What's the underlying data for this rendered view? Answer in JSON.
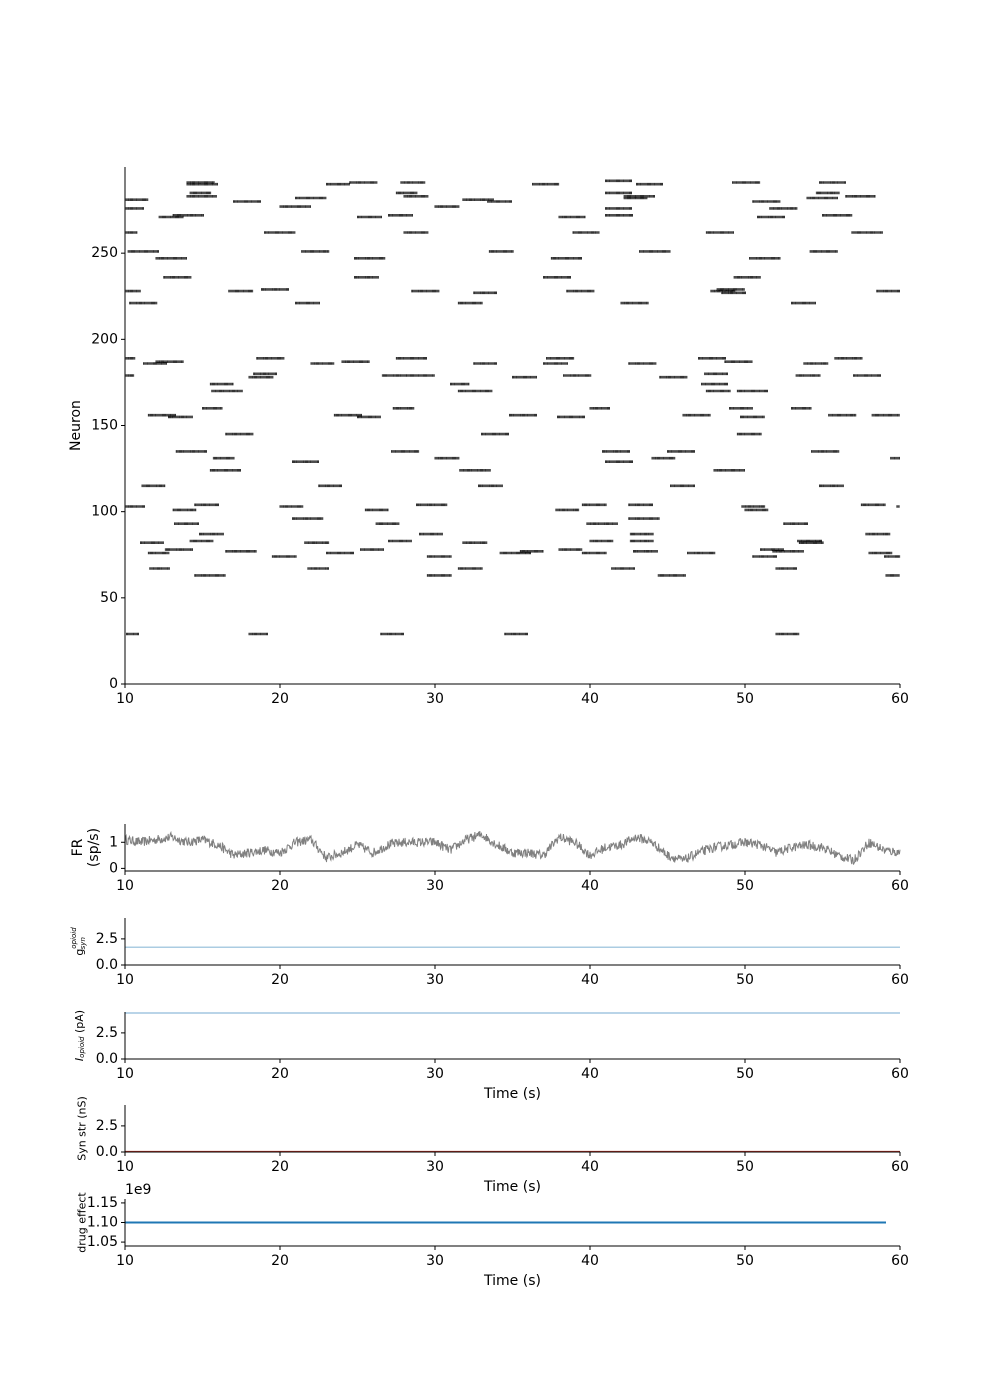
{
  "chart_data": [
    {
      "id": "raster",
      "type": "scatter",
      "marker": "short vertical tick",
      "ylabel": "Neuron",
      "xlim": [
        10,
        60
      ],
      "ylim": [
        0,
        300
      ],
      "xticks": [
        10,
        20,
        30,
        40,
        50,
        60
      ],
      "yticks": [
        0,
        50,
        100,
        150,
        200,
        250
      ],
      "color": "#000000",
      "bursts": [
        [
          10.0,
          281,
          1.5
        ],
        [
          10.0,
          276,
          1.2
        ],
        [
          10.0,
          262,
          0.8
        ],
        [
          10.2,
          251,
          2.0
        ],
        [
          10.0,
          228,
          1.0
        ],
        [
          10.3,
          221,
          1.8
        ],
        [
          10.0,
          189,
          0.7
        ],
        [
          10.0,
          179,
          0.6
        ],
        [
          10.0,
          103,
          1.3
        ],
        [
          10.1,
          29,
          0.8
        ],
        [
          11.2,
          186,
          1.5
        ],
        [
          11.5,
          156,
          1.8
        ],
        [
          11.0,
          82,
          1.5
        ],
        [
          11.5,
          76,
          1.4
        ],
        [
          11.6,
          67,
          1.3
        ],
        [
          11.1,
          115,
          1.5
        ],
        [
          12.0,
          187,
          1.8
        ],
        [
          12.2,
          271,
          1.6
        ],
        [
          12.0,
          247,
          2.0
        ],
        [
          12.5,
          236,
          1.8
        ],
        [
          12.8,
          155,
          1.6
        ],
        [
          12.6,
          78,
          1.8
        ],
        [
          13.1,
          272,
          2.0
        ],
        [
          13.3,
          135,
          2.0
        ],
        [
          13.1,
          101,
          1.5
        ],
        [
          13.2,
          93,
          1.6
        ],
        [
          14.0,
          291,
          1.8
        ],
        [
          14.0,
          290,
          2.0
        ],
        [
          14.2,
          285,
          1.4
        ],
        [
          14.0,
          283,
          1.9
        ],
        [
          14.5,
          104,
          1.6
        ],
        [
          14.8,
          87,
          1.6
        ],
        [
          14.2,
          83,
          1.5
        ],
        [
          14.5,
          63,
          2.0
        ],
        [
          15.0,
          160,
          1.3
        ],
        [
          15.5,
          174,
          1.5
        ],
        [
          15.6,
          170,
          2.0
        ],
        [
          15.7,
          131,
          1.4
        ],
        [
          15.5,
          124,
          2.0
        ],
        [
          16.5,
          145,
          1.8
        ],
        [
          16.7,
          228,
          1.6
        ],
        [
          16.5,
          77,
          2.0
        ],
        [
          17.0,
          280,
          1.8
        ],
        [
          18.0,
          178,
          1.6
        ],
        [
          18.0,
          29,
          1.2
        ],
        [
          18.5,
          189,
          1.8
        ],
        [
          18.3,
          180,
          1.5
        ],
        [
          18.8,
          229,
          1.8
        ],
        [
          19.0,
          262,
          2.0
        ],
        [
          19.5,
          74,
          1.6
        ],
        [
          20.0,
          277,
          2.0
        ],
        [
          20.0,
          103,
          1.5
        ],
        [
          20.8,
          96,
          2.0
        ],
        [
          20.8,
          129,
          1.7
        ],
        [
          21.0,
          221,
          1.6
        ],
        [
          21.0,
          282,
          2.0
        ],
        [
          21.4,
          251,
          1.8
        ],
        [
          21.6,
          82,
          1.6
        ],
        [
          21.8,
          67,
          1.4
        ],
        [
          22.0,
          186,
          1.5
        ],
        [
          22.5,
          115,
          1.5
        ],
        [
          23.0,
          290,
          1.5
        ],
        [
          23.0,
          76,
          1.8
        ],
        [
          23.5,
          156,
          1.8
        ],
        [
          24.0,
          187,
          1.8
        ],
        [
          24.5,
          291,
          1.8
        ],
        [
          24.8,
          247,
          2.0
        ],
        [
          24.8,
          236,
          1.6
        ],
        [
          25.0,
          155,
          1.5
        ],
        [
          25.0,
          271,
          1.6
        ],
        [
          25.2,
          78,
          1.5
        ],
        [
          25.5,
          101,
          1.5
        ],
        [
          26.2,
          93,
          1.5
        ],
        [
          26.5,
          29,
          1.5
        ],
        [
          26.6,
          179,
          1.6
        ],
        [
          27.0,
          272,
          1.6
        ],
        [
          27.0,
          83,
          1.5
        ],
        [
          27.2,
          135,
          1.8
        ],
        [
          27.3,
          160,
          1.4
        ],
        [
          27.5,
          189,
          2.0
        ],
        [
          27.8,
          291,
          1.6
        ],
        [
          27.5,
          285,
          1.4
        ],
        [
          28.0,
          283,
          1.6
        ],
        [
          28.0,
          262,
          1.6
        ],
        [
          28.2,
          179,
          1.8
        ],
        [
          28.5,
          228,
          1.8
        ],
        [
          28.8,
          104,
          2.0
        ],
        [
          29.0,
          87,
          1.5
        ],
        [
          29.5,
          74,
          1.6
        ],
        [
          29.5,
          63,
          1.6
        ],
        [
          30.0,
          131,
          1.6
        ],
        [
          30.0,
          277,
          1.6
        ],
        [
          31.0,
          174,
          1.2
        ],
        [
          31.5,
          170,
          2.2
        ],
        [
          31.6,
          124,
          2.0
        ],
        [
          31.5,
          221,
          1.6
        ],
        [
          31.5,
          67,
          1.6
        ],
        [
          31.8,
          281,
          2.0
        ],
        [
          31.8,
          82,
          1.6
        ],
        [
          32.5,
          227,
          1.5
        ],
        [
          32.5,
          186,
          1.5
        ],
        [
          32.8,
          115,
          1.6
        ],
        [
          33.0,
          145,
          1.8
        ],
        [
          33.4,
          280,
          1.6
        ],
        [
          33.5,
          251,
          1.6
        ],
        [
          34.5,
          29,
          1.5
        ],
        [
          34.2,
          76,
          2.0
        ],
        [
          34.8,
          156,
          1.8
        ],
        [
          35.0,
          178,
          1.6
        ],
        [
          35.5,
          77,
          1.5
        ],
        [
          36.3,
          290,
          1.7
        ],
        [
          37.0,
          236,
          1.8
        ],
        [
          37.2,
          189,
          1.8
        ],
        [
          37.0,
          186,
          1.6
        ],
        [
          37.5,
          247,
          2.0
        ],
        [
          37.8,
          101,
          1.5
        ],
        [
          37.9,
          155,
          1.8
        ],
        [
          38.0,
          271,
          1.7
        ],
        [
          38.0,
          78,
          1.5
        ],
        [
          38.3,
          179,
          1.8
        ],
        [
          38.5,
          228,
          1.8
        ],
        [
          38.9,
          262,
          1.7
        ],
        [
          39.5,
          76,
          1.6
        ],
        [
          39.5,
          104,
          1.6
        ],
        [
          39.8,
          93,
          2.0
        ],
        [
          40.0,
          160,
          1.3
        ],
        [
          40.0,
          83,
          1.5
        ],
        [
          40.8,
          135,
          1.8
        ],
        [
          41.0,
          129,
          1.8
        ],
        [
          41.0,
          292,
          1.7
        ],
        [
          41.0,
          285,
          1.7
        ],
        [
          41.0,
          276,
          1.7
        ],
        [
          41.0,
          272,
          1.8
        ],
        [
          41.4,
          67,
          1.5
        ],
        [
          42.0,
          221,
          1.8
        ],
        [
          42.2,
          283,
          2.0
        ],
        [
          42.2,
          282,
          1.5
        ],
        [
          42.5,
          186,
          1.8
        ],
        [
          42.5,
          104,
          1.6
        ],
        [
          42.5,
          96,
          2.0
        ],
        [
          42.6,
          87,
          1.5
        ],
        [
          42.6,
          83,
          1.5
        ],
        [
          42.8,
          77,
          1.6
        ],
        [
          43.0,
          290,
          1.7
        ],
        [
          43.2,
          251,
          2.0
        ],
        [
          44.0,
          131,
          1.5
        ],
        [
          44.4,
          63,
          1.8
        ],
        [
          44.5,
          178,
          1.8
        ],
        [
          45.2,
          115,
          1.6
        ],
        [
          45.0,
          135,
          1.8
        ],
        [
          46.0,
          156,
          1.8
        ],
        [
          46.3,
          76,
          1.8
        ],
        [
          47.0,
          189,
          1.8
        ],
        [
          47.2,
          174,
          1.7
        ],
        [
          47.5,
          170,
          1.6
        ],
        [
          47.4,
          180,
          1.5
        ],
        [
          47.5,
          262,
          1.8
        ],
        [
          47.8,
          228,
          1.6
        ],
        [
          48.0,
          124,
          2.0
        ],
        [
          48.2,
          229,
          1.8
        ],
        [
          48.5,
          227,
          1.6
        ],
        [
          48.7,
          187,
          1.8
        ],
        [
          49.0,
          160,
          1.5
        ],
        [
          49.2,
          291,
          1.8
        ],
        [
          49.3,
          236,
          1.7
        ],
        [
          49.5,
          170,
          2.0
        ],
        [
          49.5,
          145,
          1.6
        ],
        [
          49.7,
          155,
          1.6
        ],
        [
          49.8,
          103,
          1.5
        ],
        [
          50.0,
          101,
          1.5
        ],
        [
          50.3,
          247,
          2.0
        ],
        [
          50.5,
          280,
          1.8
        ],
        [
          50.5,
          74,
          1.6
        ],
        [
          50.8,
          271,
          1.8
        ],
        [
          51.0,
          78,
          1.5
        ],
        [
          51.6,
          276,
          1.8
        ],
        [
          51.8,
          77,
          2.0
        ],
        [
          52.0,
          67,
          1.4
        ],
        [
          52.0,
          29,
          1.5
        ],
        [
          52.5,
          93,
          1.6
        ],
        [
          53.0,
          221,
          1.6
        ],
        [
          53.0,
          160,
          1.3
        ],
        [
          53.3,
          179,
          1.6
        ],
        [
          53.4,
          83,
          1.6
        ],
        [
          53.5,
          82,
          1.6
        ],
        [
          53.8,
          186,
          1.6
        ],
        [
          54.0,
          282,
          2.0
        ],
        [
          54.2,
          251,
          1.8
        ],
        [
          54.3,
          135,
          1.8
        ],
        [
          54.6,
          285,
          1.5
        ],
        [
          54.8,
          291,
          1.7
        ],
        [
          54.8,
          115,
          1.6
        ],
        [
          55.0,
          272,
          1.9
        ],
        [
          55.4,
          156,
          1.8
        ],
        [
          55.8,
          189,
          1.8
        ],
        [
          56.5,
          283,
          1.9
        ],
        [
          56.9,
          262,
          2.0
        ],
        [
          57.0,
          179,
          1.8
        ],
        [
          57.5,
          104,
          1.6
        ],
        [
          57.8,
          87,
          1.6
        ],
        [
          58.0,
          76,
          1.5
        ],
        [
          58.2,
          156,
          1.8
        ],
        [
          58.5,
          228,
          1.9
        ],
        [
          59.0,
          74,
          1.2
        ],
        [
          59.1,
          63,
          0.9
        ],
        [
          59.4,
          131,
          0.6
        ],
        [
          59.8,
          103,
          0.2
        ]
      ]
    },
    {
      "id": "fr",
      "type": "line",
      "ylabel": "FR\n(sp/s)",
      "xlim": [
        10,
        60
      ],
      "ylim": [
        -0.1,
        1.7
      ],
      "xticks": [
        10,
        20,
        30,
        40,
        50,
        60
      ],
      "yticks": [
        0,
        1
      ],
      "color": "#808080",
      "x": [
        10,
        11,
        12,
        13,
        14,
        15,
        16,
        17,
        18,
        19,
        20,
        21,
        22,
        23,
        24,
        25,
        26,
        27,
        28,
        29,
        30,
        31,
        32,
        33,
        34,
        35,
        36,
        37,
        38,
        39,
        40,
        41,
        42,
        43,
        44,
        45,
        46,
        47,
        48,
        49,
        50,
        51,
        52,
        53,
        54,
        55,
        56,
        57,
        58,
        59,
        60
      ],
      "values": [
        1.1,
        1.0,
        1.1,
        1.2,
        1.0,
        1.1,
        0.9,
        0.5,
        0.6,
        0.7,
        0.6,
        1.0,
        1.1,
        0.4,
        0.6,
        0.9,
        0.6,
        0.9,
        1.0,
        1.0,
        1.0,
        0.7,
        1.1,
        1.3,
        0.9,
        0.6,
        0.6,
        0.5,
        1.2,
        1.0,
        0.5,
        0.8,
        0.9,
        1.2,
        1.0,
        0.5,
        0.3,
        0.6,
        0.8,
        0.9,
        1.0,
        0.9,
        0.6,
        0.8,
        0.9,
        0.8,
        0.5,
        0.3,
        1.0,
        0.7,
        0.6
      ],
      "noise": 0.18
    },
    {
      "id": "gsyn",
      "type": "line",
      "ylabel": "$g^{opioid}_{syn}$",
      "xlim": [
        10,
        60
      ],
      "ylim": [
        0,
        4.5
      ],
      "xticks": [
        10,
        20,
        30,
        40,
        50,
        60
      ],
      "yticks": [
        0.0,
        2.5
      ],
      "ytick_labels": [
        "0.0",
        "2.5"
      ],
      "color": "#8fbbd9",
      "x": [
        10,
        60
      ],
      "values": [
        1.7,
        1.7
      ]
    },
    {
      "id": "iopioid",
      "type": "line",
      "ylabel": "$I_{opioid}$ (pA)",
      "xlabel": "Time (s)",
      "xlim": [
        10,
        60
      ],
      "ylim": [
        0,
        4.5
      ],
      "xticks": [
        10,
        20,
        30,
        40,
        50,
        60
      ],
      "yticks": [
        0.0,
        2.5
      ],
      "ytick_labels": [
        "0.0",
        "2.5"
      ],
      "color": "#8fbbd9",
      "x": [
        10,
        60
      ],
      "values": [
        4.4,
        4.4
      ]
    },
    {
      "id": "synstr",
      "type": "line",
      "ylabel": "Syn str (nS)",
      "xlabel": "Time (s)",
      "xlim": [
        10,
        60
      ],
      "ylim": [
        0,
        4.5
      ],
      "xticks": [
        10,
        20,
        30,
        40,
        50,
        60
      ],
      "yticks": [
        0.0,
        2.5
      ],
      "ytick_labels": [
        "0.0",
        "2.5"
      ],
      "color": "#c0392b",
      "x": [
        10,
        60
      ],
      "values": [
        0.05,
        0.05
      ]
    },
    {
      "id": "drug",
      "type": "line",
      "ylabel": "drug effect",
      "xlabel": "Time (s)",
      "offset_text": "1e9",
      "xlim": [
        10,
        60
      ],
      "ylim": [
        1.04,
        1.16
      ],
      "xticks": [
        10,
        20,
        30,
        40,
        50,
        60
      ],
      "yticks": [
        1.05,
        1.1,
        1.15
      ],
      "ytick_labels": [
        "1.05",
        "1.10",
        "1.15"
      ],
      "color": "#1f77b4",
      "x": [
        10,
        59.1
      ],
      "values": [
        1.1,
        1.1
      ]
    }
  ]
}
